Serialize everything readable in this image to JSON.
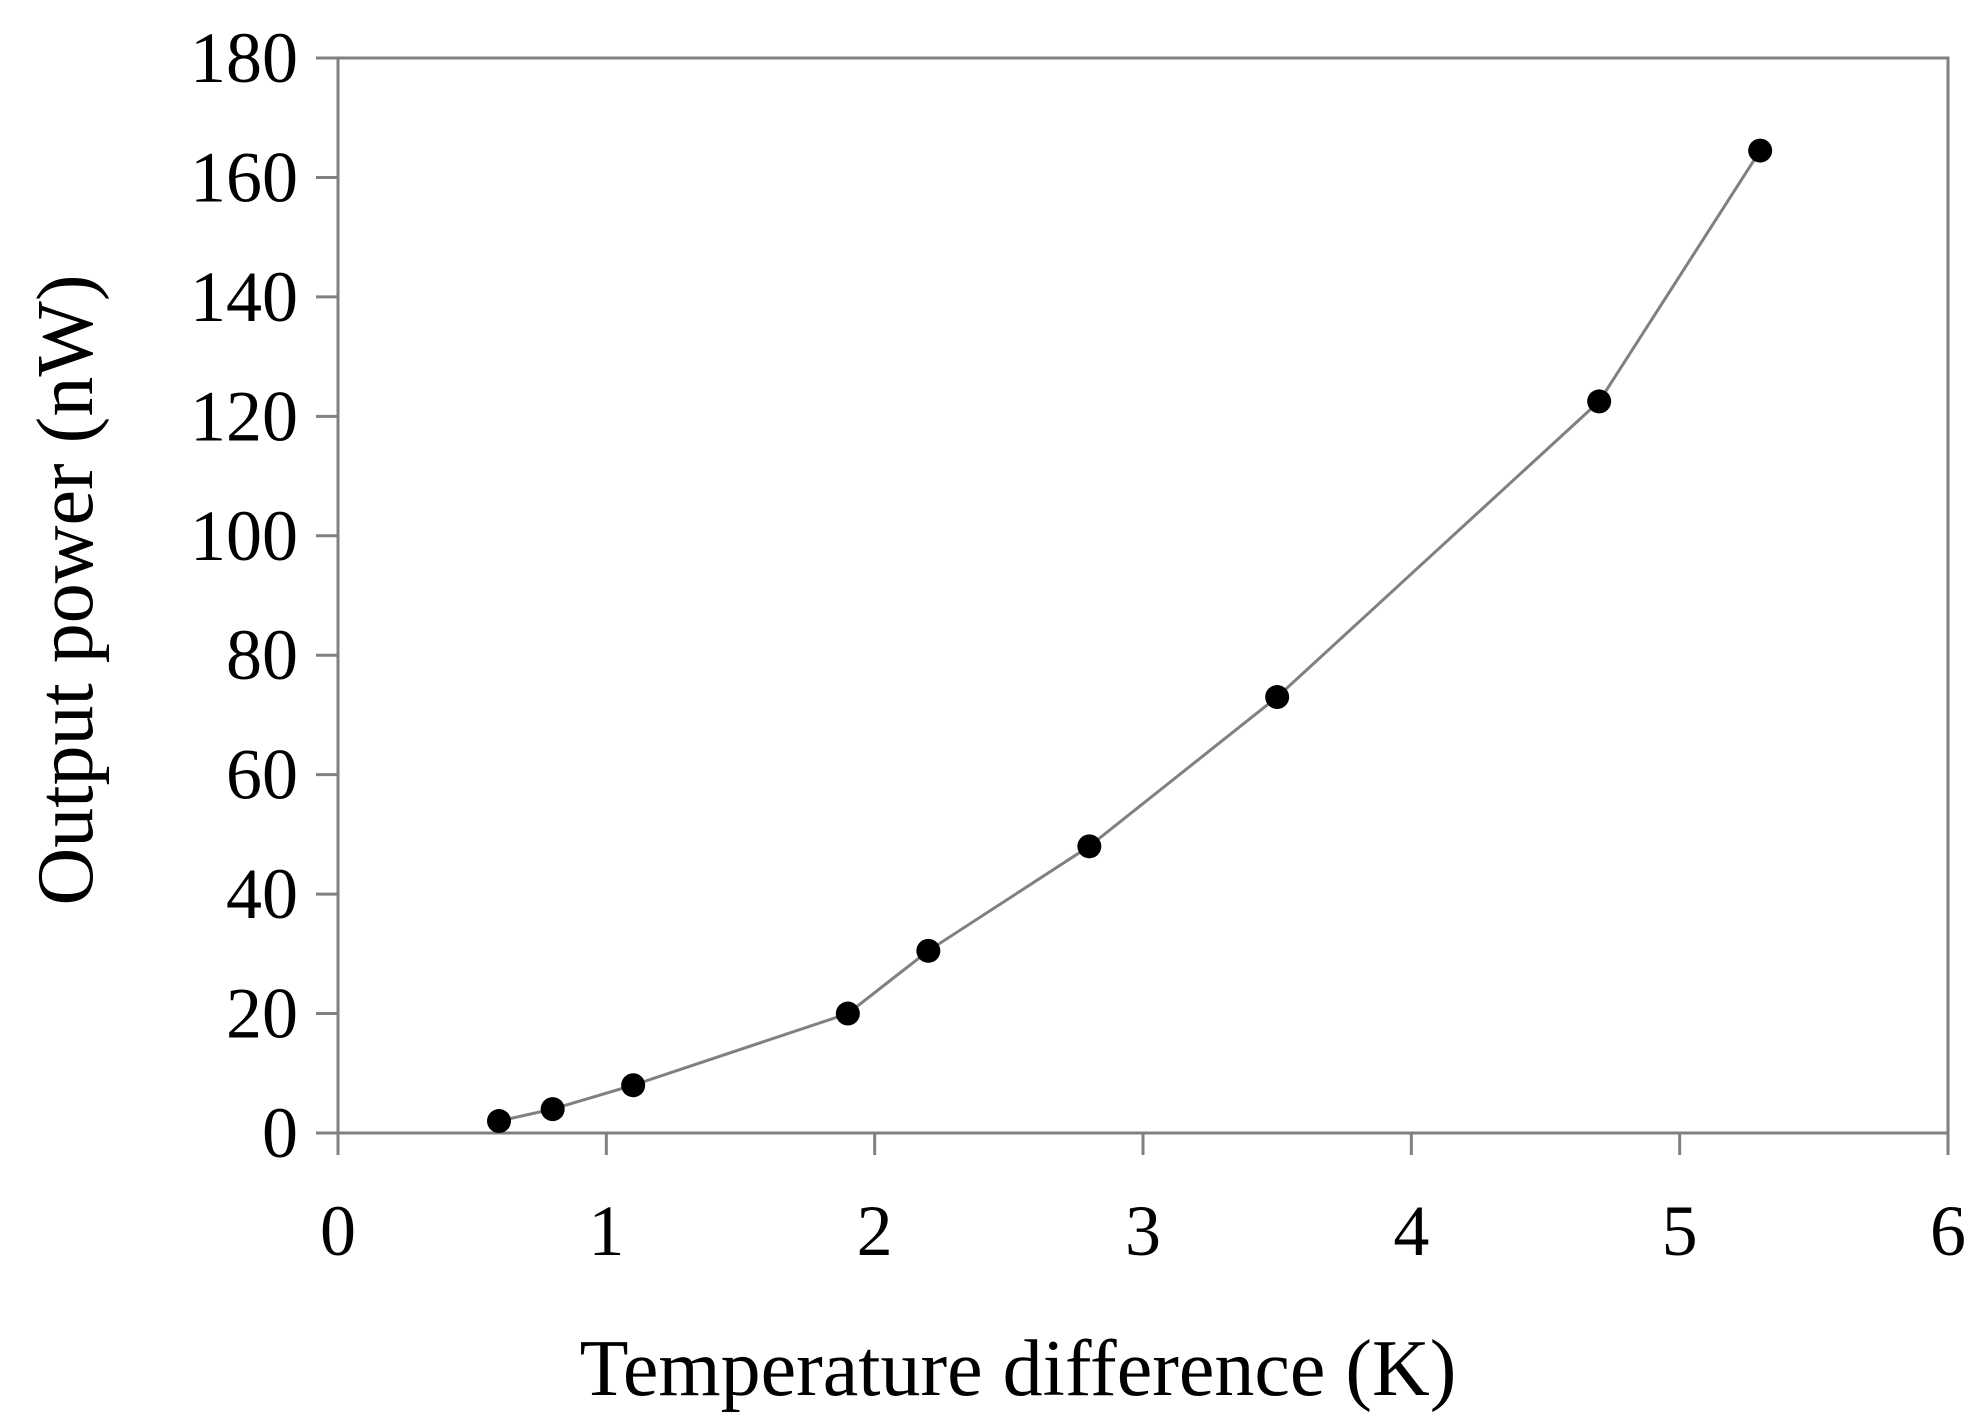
{
  "chart_data": {
    "type": "line",
    "title": "",
    "xlabel": "Temperature difference (K)",
    "ylabel": "Output power (nW)",
    "xlim": [
      0,
      6
    ],
    "ylim": [
      0,
      180
    ],
    "x_ticks": [
      0,
      1,
      2,
      3,
      4,
      5,
      6
    ],
    "y_ticks": [
      0,
      20,
      40,
      60,
      80,
      100,
      120,
      140,
      160,
      180
    ],
    "grid": false,
    "legend": "none",
    "series": [
      {
        "name": "Output power",
        "marker": "filled-circle",
        "line_color": "#808080",
        "marker_color": "#000000",
        "x": [
          0.6,
          0.8,
          1.1,
          1.9,
          2.2,
          2.8,
          3.5,
          4.7,
          5.3
        ],
        "y": [
          2,
          4,
          8,
          20,
          30.5,
          48,
          73,
          122.5,
          164.5
        ]
      }
    ]
  }
}
